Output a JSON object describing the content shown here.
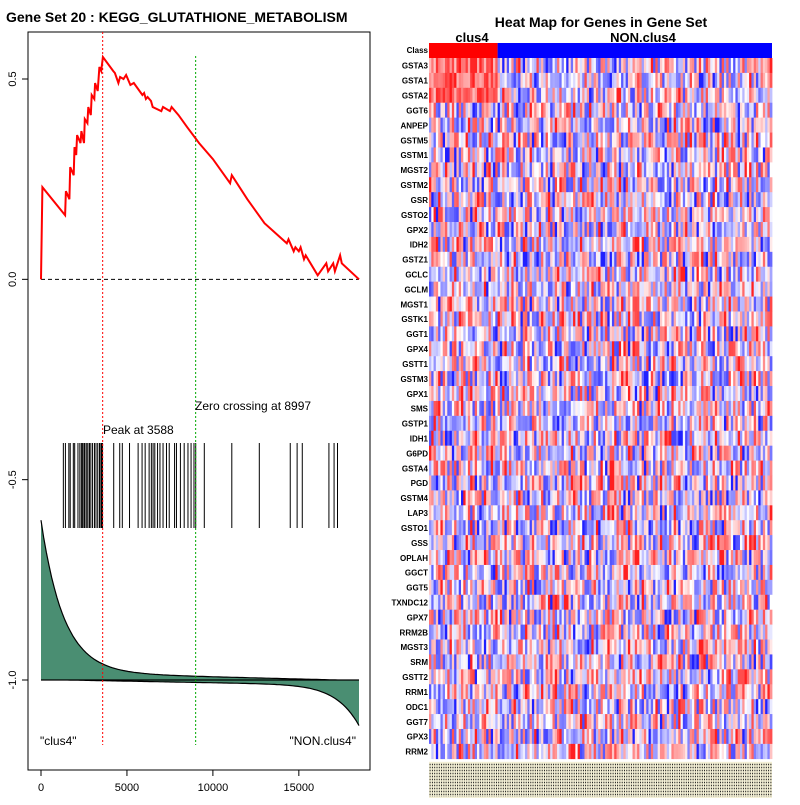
{
  "left_plot": {
    "title": "Gene Set  20 : KEGG_GLUTATHIONE_METABOLISM",
    "peak_label": "Peak at 3588",
    "zero_label": "Zero crossing at 8997",
    "class_left": "\"clus4\"",
    "class_right": "\"NON.clus4\"",
    "colors": {
      "es": "#ff0000",
      "peak": "#ff0000",
      "zero": "#00aa00",
      "ranked": "#4a8e72"
    }
  },
  "right_plot": {
    "title": "Heat Map for Genes in Gene Set",
    "group_a": "clus4",
    "group_b": "NON.clus4",
    "class_label": "Class",
    "colors": {
      "group_a": "#ff0000",
      "group_b": "#0000ff"
    }
  },
  "chart_data": [
    {
      "type": "line",
      "title": "Gene Set  20 : KEGG_GLUTATHIONE_METABOLISM",
      "xlabel": "",
      "ylabel": "",
      "xlim": [
        0,
        18500
      ],
      "ylim": [
        -1.15,
        0.58
      ],
      "x_ticks": [
        0,
        5000,
        10000,
        15000
      ],
      "x_tick_labels": [
        "0",
        "5000",
        "10000",
        "15000"
      ],
      "y_ticks": [
        -1.0,
        -0.5,
        0.0,
        0.5
      ],
      "y_tick_labels": [
        "-1.0",
        "-0.5",
        "0.0",
        "0.5"
      ],
      "peak_rank": 3588,
      "zero_crossing_rank": 8997,
      "enrichment_score_curve": {
        "x": [
          0,
          80,
          1400,
          1450,
          1650,
          1700,
          1900,
          1950,
          2050,
          2100,
          2300,
          2350,
          2500,
          2550,
          2700,
          2750,
          2900,
          2950,
          3100,
          3150,
          3300,
          3400,
          3500,
          3600,
          4200,
          4300,
          4500,
          4600,
          4800,
          4950,
          5200,
          5400,
          5900,
          6000,
          6100,
          6200,
          6400,
          6500,
          7000,
          7100,
          7500,
          7600,
          8000,
          8500,
          9200,
          10000,
          11000,
          11100,
          12000,
          13000,
          14300,
          14400,
          14700,
          14800,
          15000,
          15100,
          15300,
          15400,
          16100,
          16600,
          16700,
          17000,
          17100,
          17400,
          17500,
          18500
        ],
        "y": [
          0.0,
          0.23,
          0.16,
          0.22,
          0.2,
          0.28,
          0.26,
          0.33,
          0.31,
          0.36,
          0.34,
          0.37,
          0.34,
          0.4,
          0.39,
          0.43,
          0.41,
          0.46,
          0.45,
          0.49,
          0.47,
          0.53,
          0.52,
          0.555,
          0.52,
          0.515,
          0.49,
          0.505,
          0.5,
          0.51,
          0.485,
          0.49,
          0.46,
          0.465,
          0.45,
          0.455,
          0.445,
          0.43,
          0.42,
          0.43,
          0.42,
          0.43,
          0.41,
          0.38,
          0.34,
          0.3,
          0.24,
          0.26,
          0.2,
          0.14,
          0.09,
          0.1,
          0.07,
          0.08,
          0.07,
          0.08,
          0.05,
          0.06,
          0.01,
          0.04,
          0.02,
          0.04,
          0.02,
          0.06,
          0.04,
          0.0
        ]
      },
      "hit_ranks": [
        1300,
        1420,
        1620,
        1700,
        1880,
        1960,
        2150,
        2260,
        2350,
        2420,
        2500,
        2560,
        2660,
        2730,
        2820,
        2900,
        3000,
        3110,
        3200,
        3300,
        3400,
        3440,
        3520,
        3580,
        4230,
        4580,
        4730,
        5150,
        5650,
        5880,
        6060,
        6290,
        6420,
        6520,
        6620,
        6780,
        6920,
        7100,
        7300,
        7460,
        7770,
        7880,
        8110,
        8330,
        8550,
        8730,
        8900,
        9000,
        9500,
        11100,
        12700,
        14500,
        14900,
        15200,
        16750,
        17050,
        17250
      ],
      "ranked_metric_range": [
        -1.1,
        -0.62
      ]
    },
    {
      "type": "heatmap",
      "title": "Heat Map for Genes in Gene Set",
      "groups": [
        "clus4",
        "NON.clus4"
      ],
      "group_fraction_first": 0.2,
      "row_labels": [
        "GSTA3",
        "GSTA1",
        "GSTA2",
        "GGT6",
        "ANPEP",
        "GSTM5",
        "GSTM1",
        "MGST2",
        "GSTM2",
        "GSR",
        "GSTO2",
        "GPX2",
        "IDH2",
        "GSTZ1",
        "GCLC",
        "GCLM",
        "MGST1",
        "GSTK1",
        "GGT1",
        "GPX4",
        "GSTT1",
        "GSTM3",
        "GPX1",
        "SMS",
        "GSTP1",
        "IDH1",
        "G6PD",
        "GSTA4",
        "PGD",
        "GSTM4",
        "LAP3",
        "GSTO1",
        "GSS",
        "OPLAH",
        "GGCT",
        "GGT5",
        "TXNDC12",
        "GPX7",
        "RRM2B",
        "MGST3",
        "SRM",
        "GSTT2",
        "RRM1",
        "ODC1",
        "GGT7",
        "GPX3",
        "RRM2"
      ]
    }
  ]
}
